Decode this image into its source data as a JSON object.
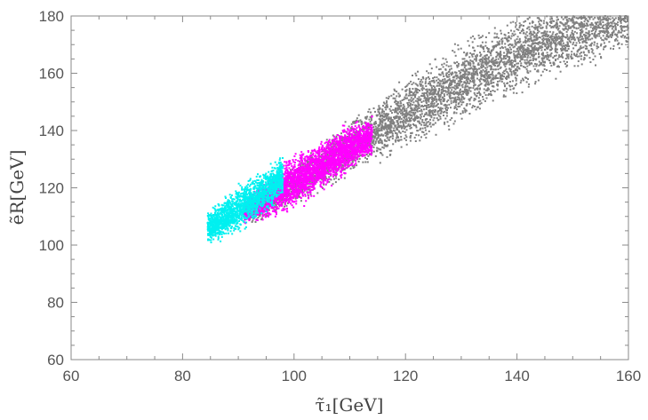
{
  "chart_data": {
    "type": "scatter",
    "title": "",
    "xlabel": "τ̃₁[GeV]",
    "ylabel": "ẽR[GeV]",
    "xlim": [
      60,
      160
    ],
    "ylim": [
      60,
      180
    ],
    "x_ticks": [
      "60",
      "80",
      "100",
      "120",
      "140",
      "160"
    ],
    "y_ticks": [
      "60",
      "80",
      "100",
      "120",
      "140",
      "160",
      "180"
    ],
    "grid": false,
    "legend": "none",
    "series": [
      {
        "color": "#808080",
        "region": {
          "x_range": [
            92,
            160
          ],
          "centerline": [
            [
              92,
              111
            ],
            [
              100,
              121
            ],
            [
              110,
              134
            ],
            [
              120,
              146
            ],
            [
              130,
              157
            ],
            [
              140,
              167
            ],
            [
              150,
              175
            ],
            [
              160,
              182
            ]
          ],
          "half_width_y": [
            [
              92,
              3
            ],
            [
              110,
              7
            ],
            [
              130,
              10
            ],
            [
              160,
              11
            ]
          ]
        }
      },
      {
        "color": "#ff00ff",
        "region": {
          "x_range": [
            91,
            114
          ],
          "centerline": [
            [
              91,
              112
            ],
            [
              96,
              117
            ],
            [
              100,
              122
            ],
            [
              105,
              128
            ],
            [
              110,
              134
            ],
            [
              114,
              138
            ]
          ],
          "half_width_y": [
            [
              91,
              3
            ],
            [
              100,
              7
            ],
            [
              114,
              5
            ]
          ]
        }
      },
      {
        "color": "#00f0f0",
        "region": {
          "x_range": [
            84.5,
            98
          ],
          "centerline": [
            [
              84.5,
              106
            ],
            [
              88,
              110
            ],
            [
              92,
              115
            ],
            [
              95,
              119
            ],
            [
              98,
              124
            ]
          ],
          "half_width_y": [
            [
              84.5,
              4
            ],
            [
              90,
              6
            ],
            [
              98,
              5
            ]
          ]
        }
      }
    ]
  }
}
